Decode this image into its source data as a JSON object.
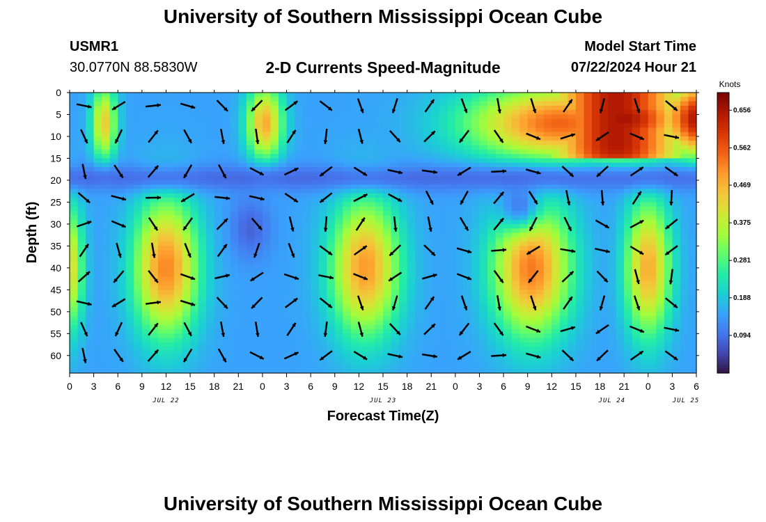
{
  "header": {
    "title": "University of Southern Mississippi Ocean Cube",
    "station_id": "USMR1",
    "coords": "30.0770N  88.5830W",
    "subtitle": "2-D Currents Speed-Magnitude",
    "model_start_label": "Model Start Time",
    "model_start_value": "07/22/2024 Hour 21"
  },
  "footer": {
    "title": "University of Southern Mississippi Ocean Cube"
  },
  "chart_data": {
    "type": "heatmap",
    "xlabel": "Forecast Time(Z)",
    "ylabel": "Depth (ft)",
    "x_tick_labels": [
      "0",
      "3",
      "6",
      "9",
      "12",
      "15",
      "18",
      "21",
      "0",
      "3",
      "6",
      "9",
      "12",
      "15",
      "18",
      "21",
      "0",
      "3",
      "6",
      "9",
      "12",
      "15",
      "18",
      "21",
      "0",
      "3",
      "6"
    ],
    "date_labels": [
      {
        "label": "JUL 22",
        "at_index": 4
      },
      {
        "label": "JUL 23",
        "at_index": 13
      },
      {
        "label": "JUL 24",
        "at_index": 22.5
      },
      {
        "label": "JUL 25",
        "at_index": 28.3
      }
    ],
    "y_tick_labels": [
      "0",
      "5",
      "10",
      "15",
      "20",
      "25",
      "30",
      "35",
      "40",
      "45",
      "50",
      "55",
      "60"
    ],
    "ylim": [
      0,
      64
    ],
    "colorbar": {
      "unit": "Knots",
      "ticks": [
        "0.656",
        "0.562",
        "0.469",
        "0.375",
        "0.281",
        "0.188",
        "0.094"
      ],
      "range": [
        0,
        0.7
      ],
      "colors": [
        "#30123b",
        "#4145ab",
        "#4675ed",
        "#39a2fc",
        "#1bcfd4",
        "#24eca6",
        "#61fc6c",
        "#a4fc3b",
        "#d1e834",
        "#f3c63a",
        "#fe9b2d",
        "#f36315",
        "#d93806",
        "#b11901",
        "#7a0402"
      ]
    },
    "speed_blobs": [
      {
        "t": 0.0,
        "depth": 40,
        "sigma_t": 1.2,
        "sigma_d": 10,
        "value": 0.42
      },
      {
        "t": 4.3,
        "depth": 7,
        "sigma_t": 1.1,
        "sigma_d": 6,
        "value": 0.44
      },
      {
        "t": 12.0,
        "depth": 40,
        "sigma_t": 2.8,
        "sigma_d": 11,
        "value": 0.52
      },
      {
        "t": 2.2,
        "depth": 40,
        "sigma_t": 1.0,
        "sigma_d": 12,
        "value": 0.16
      },
      {
        "t": 24.3,
        "depth": 7,
        "sigma_t": 1.6,
        "sigma_d": 6,
        "value": 0.48
      },
      {
        "t": 36.8,
        "depth": 40,
        "sigma_t": 3.0,
        "sigma_d": 11,
        "value": 0.5
      },
      {
        "t": 57.5,
        "depth": 40,
        "sigma_t": 3.4,
        "sigma_d": 11,
        "value": 0.53
      },
      {
        "t": 61.0,
        "depth": 7,
        "sigma_t": 8.0,
        "sigma_d": 6,
        "value": 0.55
      },
      {
        "t": 69.0,
        "depth": 6,
        "sigma_t": 5.5,
        "sigma_d": 6,
        "value": 0.66
      },
      {
        "t": 72.0,
        "depth": 40,
        "sigma_t": 2.0,
        "sigma_d": 11,
        "value": 0.48
      },
      {
        "t": 79.0,
        "depth": 6,
        "sigma_t": 4.0,
        "sigma_d": 6,
        "value": 0.68
      }
    ],
    "quiet_bands": [
      {
        "depth": 19.5,
        "sigma_d": 2.2,
        "value": 0.07
      },
      {
        "t": 22.5,
        "depth": 31,
        "sigma_t": 1.8,
        "sigma_d": 5,
        "value": 0.06
      },
      {
        "t": 56.0,
        "depth": 26,
        "sigma_t": 2.0,
        "sigma_d": 4,
        "value": 0.05
      }
    ]
  }
}
